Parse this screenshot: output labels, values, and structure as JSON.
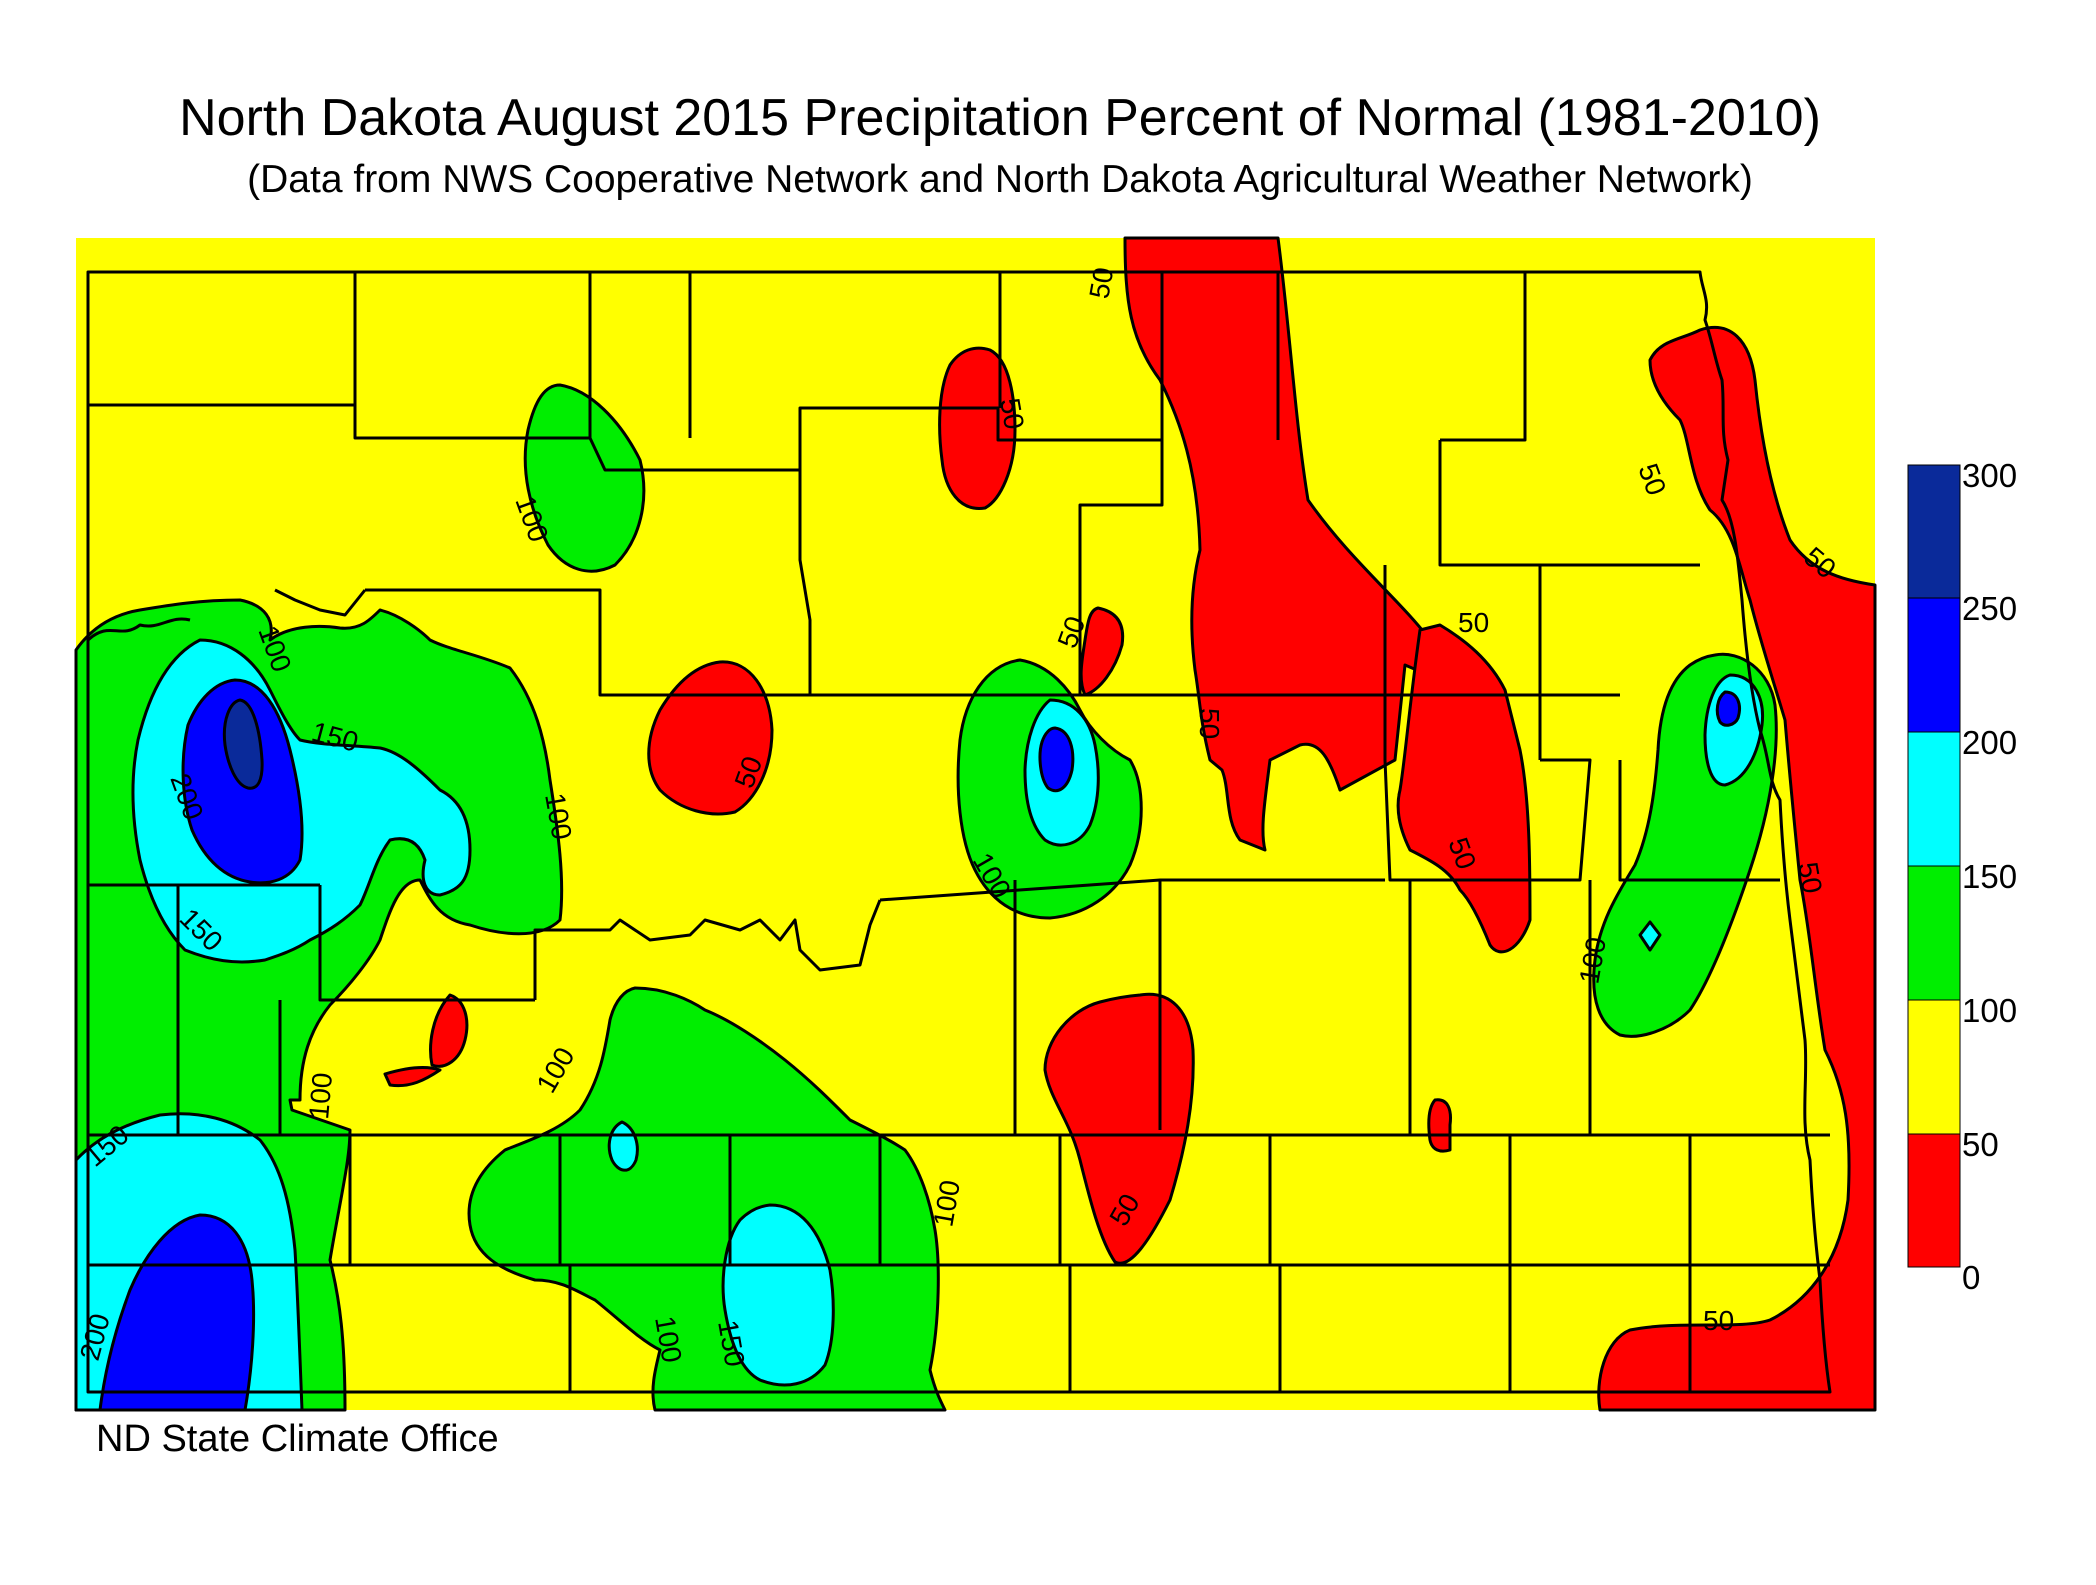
{
  "title": "North Dakota August 2015 Precipitation Percent of Normal (1981-2010)",
  "subtitle": "(Data from NWS Cooperative Network and North Dakota Agricultural Weather Network)",
  "credit": "ND State Climate Office",
  "legend": {
    "bins": [
      {
        "min": 0,
        "max": 50,
        "color": "#ff0000"
      },
      {
        "min": 50,
        "max": 100,
        "color": "#ffff00"
      },
      {
        "min": 100,
        "max": 150,
        "color": "#00ee00"
      },
      {
        "min": 150,
        "max": 200,
        "color": "#00ffff"
      },
      {
        "min": 200,
        "max": 250,
        "color": "#0000ff"
      },
      {
        "min": 250,
        "max": 300,
        "color": "#0a2a9a"
      }
    ],
    "labels": [
      "300",
      "250",
      "200",
      "150",
      "100",
      "50",
      "0"
    ]
  },
  "contour_labels": {
    "c50": "50",
    "c100": "100",
    "c150": "150",
    "c200": "200"
  }
}
